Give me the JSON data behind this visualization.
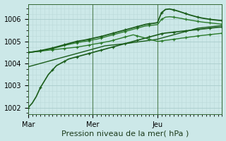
{
  "background_color": "#cce8e8",
  "grid_color_major": "#aacccc",
  "grid_color_minor": "#bbd8d8",
  "xlabel": "Pression niveau de la mer( hPa )",
  "xlabel_fontsize": 8,
  "tick_labels_x": [
    "Mar",
    "Mer",
    "Jeu"
  ],
  "yticks": [
    1002,
    1003,
    1004,
    1005,
    1006
  ],
  "ytick_fontsize": 7,
  "xtick_fontsize": 7,
  "ylim": [
    1001.7,
    1006.7
  ],
  "xlim": [
    0,
    96
  ],
  "vline_x": [
    32,
    64
  ],
  "line_color_dark": "#1a5c1a",
  "line_color_mid": "#2a7a2a",
  "line_color_light": "#3a8a3a",
  "series": [
    {
      "x": [
        0,
        2,
        4,
        6,
        8,
        10,
        12,
        14,
        16,
        18,
        20,
        22,
        24,
        26,
        28,
        30,
        32,
        34,
        36,
        38,
        40,
        42,
        44,
        46,
        48,
        50,
        52,
        54,
        56,
        58,
        60,
        62,
        64,
        66,
        68,
        70,
        72,
        74,
        76,
        78,
        80,
        82,
        84,
        86,
        88,
        90,
        92,
        94,
        96
      ],
      "y": [
        1002.0,
        1002.2,
        1002.5,
        1002.9,
        1003.2,
        1003.5,
        1003.7,
        1003.9,
        1004.0,
        1004.1,
        1004.2,
        1004.25,
        1004.3,
        1004.35,
        1004.4,
        1004.45,
        1004.5,
        1004.55,
        1004.6,
        1004.65,
        1004.7,
        1004.75,
        1004.8,
        1004.85,
        1004.9,
        1004.95,
        1005.0,
        1005.05,
        1005.1,
        1005.15,
        1005.2,
        1005.25,
        1005.3,
        1005.35,
        1005.38,
        1005.4,
        1005.42,
        1005.44,
        1005.46,
        1005.48,
        1005.5,
        1005.52,
        1005.54,
        1005.56,
        1005.58,
        1005.6,
        1005.62,
        1005.64,
        1005.65
      ],
      "color": "#1a5c1a",
      "lw": 1.2,
      "ls": "-",
      "marker": true
    },
    {
      "x": [
        0,
        2,
        4,
        6,
        8,
        10,
        12,
        14,
        16,
        18,
        20,
        22,
        24,
        26,
        28,
        30,
        32,
        34,
        36,
        38,
        40,
        42,
        44,
        46,
        48,
        50,
        52,
        54,
        56,
        58,
        60,
        62,
        64,
        66,
        68,
        70,
        72,
        74,
        76,
        78,
        80,
        82,
        84,
        86,
        88,
        90,
        92,
        94,
        96
      ],
      "y": [
        1003.85,
        1003.9,
        1003.95,
        1004.0,
        1004.05,
        1004.1,
        1004.15,
        1004.2,
        1004.25,
        1004.3,
        1004.35,
        1004.4,
        1004.45,
        1004.5,
        1004.55,
        1004.6,
        1004.65,
        1004.7,
        1004.75,
        1004.8,
        1004.82,
        1004.84,
        1004.86,
        1004.88,
        1004.9,
        1004.92,
        1004.95,
        1004.97,
        1005.0,
        1005.02,
        1005.05,
        1005.07,
        1005.1,
        1005.15,
        1005.2,
        1005.25,
        1005.3,
        1005.35,
        1005.4,
        1005.45,
        1005.5,
        1005.55,
        1005.6,
        1005.62,
        1005.64,
        1005.66,
        1005.68,
        1005.7,
        1005.72
      ],
      "color": "#1a5c1a",
      "lw": 1.0,
      "ls": "-",
      "marker": false
    },
    {
      "x": [
        0,
        2,
        4,
        6,
        8,
        10,
        12,
        14,
        16,
        18,
        20,
        22,
        24,
        26,
        28,
        30,
        32,
        34,
        36,
        38,
        40,
        42,
        44,
        46,
        48,
        50,
        52,
        54,
        56,
        58,
        60,
        62,
        64,
        66,
        68,
        70,
        72,
        74,
        76,
        78,
        80,
        82,
        84,
        86,
        88,
        90,
        92,
        94,
        96
      ],
      "y": [
        1004.5,
        1004.52,
        1004.54,
        1004.56,
        1004.58,
        1004.6,
        1004.62,
        1004.64,
        1004.66,
        1004.68,
        1004.7,
        1004.72,
        1004.74,
        1004.77,
        1004.8,
        1004.83,
        1004.87,
        1004.9,
        1004.93,
        1004.97,
        1005.0,
        1005.05,
        1005.1,
        1005.15,
        1005.2,
        1005.25,
        1005.3,
        1005.25,
        1005.2,
        1005.15,
        1005.1,
        1005.05,
        1005.0,
        1005.02,
        1005.05,
        1005.07,
        1005.1,
        1005.12,
        1005.15,
        1005.17,
        1005.2,
        1005.22,
        1005.25,
        1005.27,
        1005.29,
        1005.31,
        1005.33,
        1005.35,
        1005.37
      ],
      "color": "#2a7a2a",
      "lw": 1.0,
      "ls": "-",
      "marker": true
    },
    {
      "x": [
        0,
        2,
        4,
        6,
        8,
        10,
        12,
        14,
        16,
        18,
        20,
        22,
        24,
        26,
        28,
        30,
        32,
        34,
        36,
        38,
        40,
        42,
        44,
        46,
        48,
        50,
        52,
        54,
        56,
        58,
        60,
        62,
        64,
        66,
        68,
        70,
        72,
        74,
        76,
        78,
        80,
        82,
        84,
        86,
        88,
        90,
        92,
        94,
        96
      ],
      "y": [
        1004.5,
        1004.52,
        1004.54,
        1004.56,
        1004.6,
        1004.64,
        1004.68,
        1004.72,
        1004.77,
        1004.82,
        1004.86,
        1004.9,
        1004.94,
        1004.97,
        1005.0,
        1005.03,
        1005.07,
        1005.1,
        1005.15,
        1005.2,
        1005.25,
        1005.3,
        1005.35,
        1005.4,
        1005.45,
        1005.5,
        1005.55,
        1005.6,
        1005.65,
        1005.7,
        1005.72,
        1005.74,
        1005.76,
        1006.0,
        1006.1,
        1006.12,
        1006.1,
        1006.07,
        1006.04,
        1006.0,
        1005.97,
        1005.94,
        1005.91,
        1005.88,
        1005.86,
        1005.84,
        1005.82,
        1005.8,
        1005.78
      ],
      "color": "#2a7a2a",
      "lw": 1.0,
      "ls": "-",
      "marker": true
    },
    {
      "x": [
        0,
        2,
        4,
        6,
        8,
        10,
        12,
        14,
        16,
        18,
        20,
        22,
        24,
        26,
        28,
        30,
        32,
        34,
        36,
        38,
        40,
        42,
        44,
        46,
        48,
        50,
        52,
        54,
        56,
        58,
        60,
        62,
        64,
        66,
        68,
        70,
        72,
        74,
        76,
        78,
        80,
        82,
        84,
        86,
        88,
        90,
        92,
        94,
        96
      ],
      "y": [
        1004.5,
        1004.52,
        1004.55,
        1004.58,
        1004.62,
        1004.66,
        1004.7,
        1004.75,
        1004.8,
        1004.85,
        1004.9,
        1004.95,
        1005.0,
        1005.03,
        1005.06,
        1005.1,
        1005.14,
        1005.18,
        1005.22,
        1005.27,
        1005.32,
        1005.37,
        1005.42,
        1005.47,
        1005.52,
        1005.57,
        1005.62,
        1005.67,
        1005.72,
        1005.77,
        1005.8,
        1005.82,
        1005.85,
        1006.3,
        1006.45,
        1006.47,
        1006.43,
        1006.38,
        1006.32,
        1006.26,
        1006.2,
        1006.15,
        1006.1,
        1006.06,
        1006.03,
        1006.0,
        1005.98,
        1005.96,
        1005.94
      ],
      "color": "#1a5c1a",
      "lw": 1.3,
      "ls": "-",
      "marker": true
    }
  ]
}
